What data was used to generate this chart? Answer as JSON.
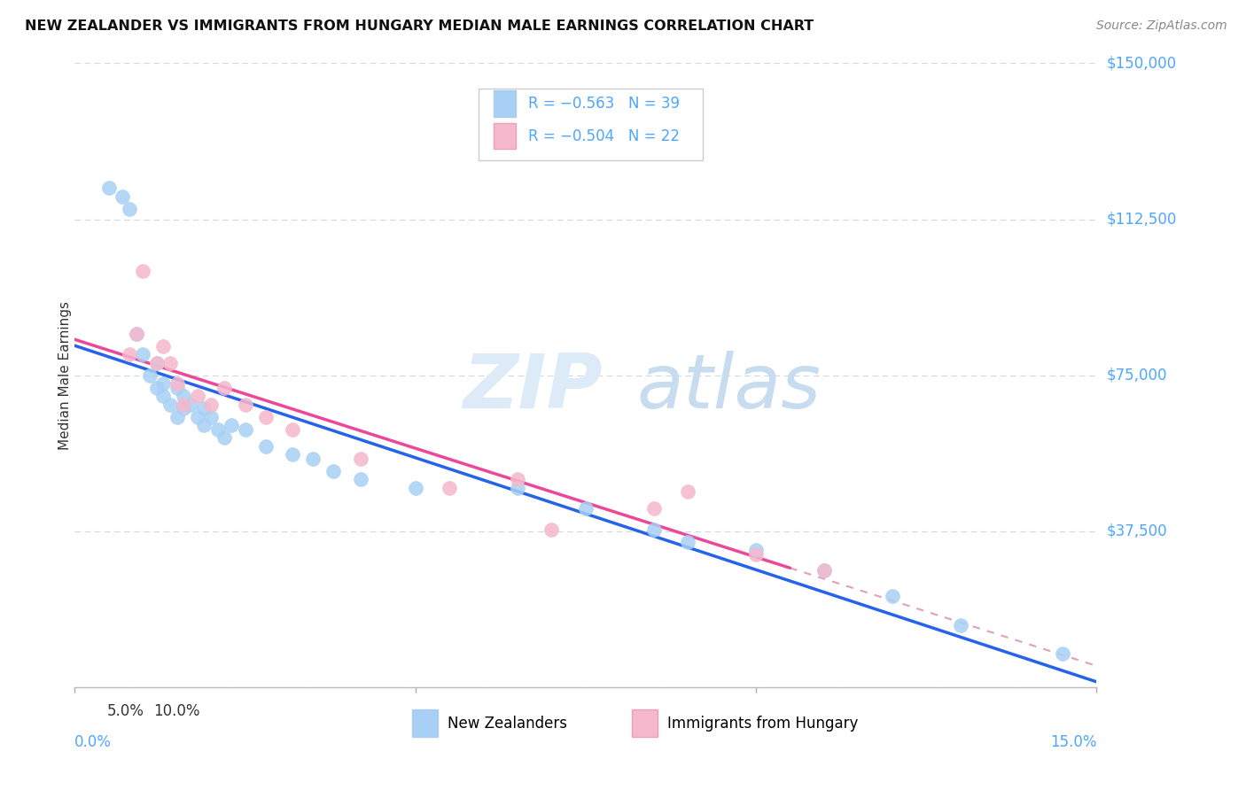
{
  "title": "NEW ZEALANDER VS IMMIGRANTS FROM HUNGARY MEDIAN MALE EARNINGS CORRELATION CHART",
  "source": "Source: ZipAtlas.com",
  "ylabel": "Median Male Earnings",
  "xlim": [
    0.0,
    0.15
  ],
  "ylim": [
    0,
    150000
  ],
  "yticks": [
    0,
    37500,
    75000,
    112500,
    150000
  ],
  "ytick_labels": [
    "",
    "$37,500",
    "$75,000",
    "$112,500",
    "$150,000"
  ],
  "xticks": [
    0.0,
    0.05,
    0.1,
    0.15
  ],
  "xtick_labels": [
    "0.0%",
    "5.0%",
    "10.0%",
    "15.0%"
  ],
  "watermark_zip": "ZIP",
  "watermark_atlas": "atlas",
  "legend_r1": "R = −0.563",
  "legend_n1": "N = 39",
  "legend_r2": "R = −0.504",
  "legend_n2": "N = 22",
  "legend_label1": "New Zealanders",
  "legend_label2": "Immigrants from Hungary",
  "nz_color": "#A8D0F5",
  "hungary_color": "#F5B8CC",
  "nz_line_color": "#2563EB",
  "hungary_line_color": "#EC4899",
  "hungary_dash_color": "#E0A0B8",
  "axis_label_color": "#4DA6FF",
  "title_color": "#111111",
  "source_color": "#888888",
  "background_color": "#FFFFFF",
  "grid_color": "#D0D8E0",
  "nz_x": [
    0.005,
    0.007,
    0.008,
    0.009,
    0.01,
    0.011,
    0.012,
    0.012,
    0.013,
    0.013,
    0.014,
    0.015,
    0.015,
    0.016,
    0.016,
    0.017,
    0.018,
    0.019,
    0.019,
    0.02,
    0.021,
    0.022,
    0.023,
    0.025,
    0.028,
    0.032,
    0.035,
    0.038,
    0.042,
    0.05,
    0.065,
    0.075,
    0.085,
    0.09,
    0.1,
    0.11,
    0.12,
    0.13,
    0.145
  ],
  "nz_y": [
    120000,
    118000,
    115000,
    85000,
    80000,
    75000,
    72000,
    78000,
    73000,
    70000,
    68000,
    72000,
    65000,
    70000,
    67000,
    68000,
    65000,
    63000,
    67000,
    65000,
    62000,
    60000,
    63000,
    62000,
    58000,
    56000,
    55000,
    52000,
    50000,
    48000,
    48000,
    43000,
    38000,
    35000,
    33000,
    28000,
    22000,
    15000,
    8000
  ],
  "hu_x": [
    0.008,
    0.009,
    0.01,
    0.012,
    0.013,
    0.014,
    0.015,
    0.016,
    0.018,
    0.02,
    0.022,
    0.025,
    0.028,
    0.032,
    0.042,
    0.055,
    0.065,
    0.07,
    0.085,
    0.09,
    0.1,
    0.11
  ],
  "hu_y": [
    80000,
    85000,
    100000,
    78000,
    82000,
    78000,
    73000,
    68000,
    70000,
    68000,
    72000,
    68000,
    65000,
    62000,
    55000,
    48000,
    50000,
    38000,
    43000,
    47000,
    32000,
    28000
  ],
  "nz_intercept": 78000,
  "nz_slope": -520000,
  "hu_intercept": 88000,
  "hu_slope": -590000
}
